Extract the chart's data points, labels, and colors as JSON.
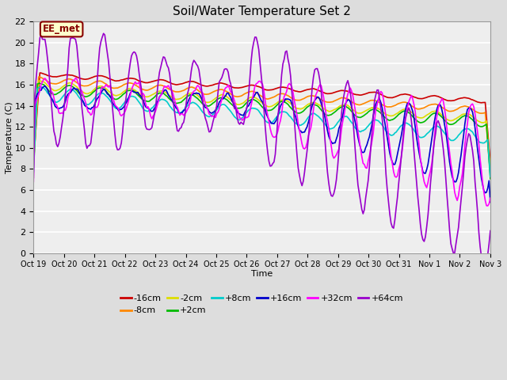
{
  "title": "Soil/Water Temperature Set 2",
  "xlabel": "Time",
  "ylabel": "Temperature (C)",
  "ylim": [
    0,
    22
  ],
  "yticks": [
    0,
    2,
    4,
    6,
    8,
    10,
    12,
    14,
    16,
    18,
    20,
    22
  ],
  "xtick_labels": [
    "Oct 19",
    "Oct 20",
    "Oct 21",
    "Oct 22",
    "Oct 23",
    "Oct 24",
    "Oct 25",
    "Oct 26",
    "Oct 27",
    "Oct 28",
    "Oct 29",
    "Oct 30",
    "Oct 31",
    "Nov 1",
    "Nov 2",
    "Nov 3"
  ],
  "annotation_text": "EE_met",
  "annotation_bg": "#ffffcc",
  "annotation_border": "#880000",
  "series": [
    {
      "label": "-16cm",
      "color": "#cc0000"
    },
    {
      "label": "-8cm",
      "color": "#ff8800"
    },
    {
      "label": "-2cm",
      "color": "#dddd00"
    },
    {
      "label": "+2cm",
      "color": "#00bb00"
    },
    {
      "label": "+8cm",
      "color": "#00cccc"
    },
    {
      "label": "+16cm",
      "color": "#0000cc"
    },
    {
      "label": "+32cm",
      "color": "#ff00ff"
    },
    {
      "label": "+64cm",
      "color": "#9900cc"
    }
  ],
  "bg_color": "#dddddd",
  "plot_bg": "#eeeeee",
  "grid_color": "#ffffff",
  "legend_row1": [
    "-16cm",
    "-8cm",
    "-2cm",
    "+2cm",
    "+8cm",
    "+16cm"
  ],
  "legend_row2": [
    "+32cm",
    "+64cm"
  ]
}
